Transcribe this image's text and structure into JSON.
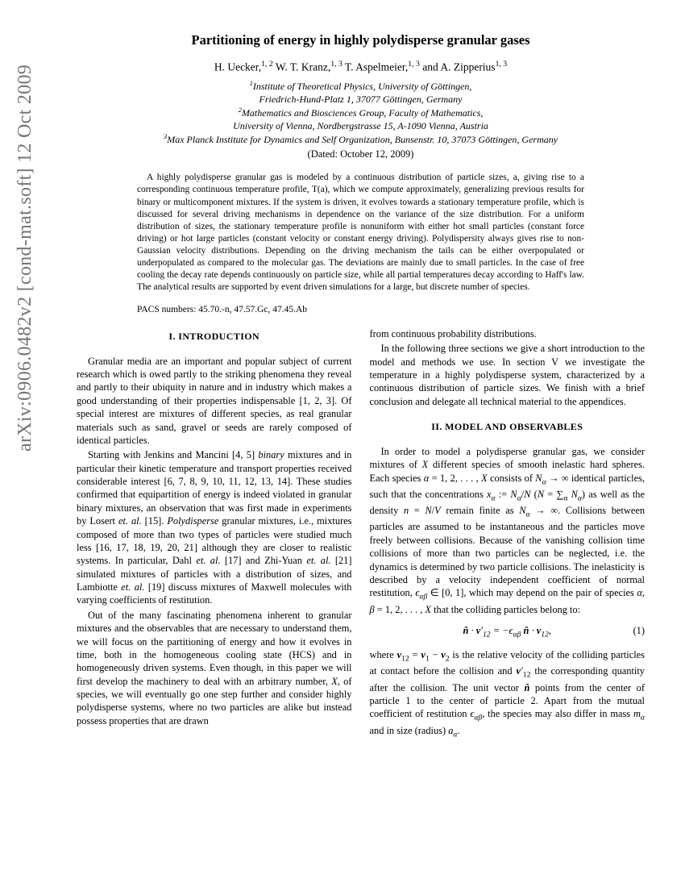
{
  "arxiv": "arXiv:0906.0482v2  [cond-mat.soft]  12 Oct 2009",
  "title": "Partitioning of energy in highly polydisperse granular gases",
  "authors_html": "H. Uecker,<sup>1, 2</sup> W. T. Kranz,<sup>1, 3</sup> T. Aspelmeier,<sup>1, 3</sup> and A. Zipperius<sup>1, 3</sup>",
  "affil1_sup": "1",
  "affil1": "Institute of Theoretical Physics, University of Göttingen,",
  "affil1b": "Friedrich-Hund-Platz 1, 37077 Göttingen, Germany",
  "affil2_sup": "2",
  "affil2": "Mathematics and Biosciences Group, Faculty of Mathematics,",
  "affil2b": "University of Vienna, Nordbergstrasse 15, A-1090 Vienna, Austria",
  "affil3_sup": "3",
  "affil3": "Max Planck Institute for Dynamics and Self Organization, Bunsenstr. 10, 37073 Göttingen, Germany",
  "dated": "(Dated: October 12, 2009)",
  "abstract": "A highly polydisperse granular gas is modeled by a continuous distribution of particle sizes, a, giving rise to a corresponding continuous temperature profile, T(a), which we compute approximately, generalizing previous results for binary or multicomponent mixtures. If the system is driven, it evolves towards a stationary temperature profile, which is discussed for several driving mechanisms in dependence on the variance of the size distribution. For a uniform distribution of sizes, the stationary temperature profile is nonuniform with either hot small particles (constant force driving) or hot large particles (constant velocity or constant energy driving). Polydispersity always gives rise to non-Gaussian velocity distributions. Depending on the driving mechanism the tails can be either overpopulated or underpopulated as compared to the molecular gas. The deviations are mainly due to small particles. In the case of free cooling the decay rate depends continuously on particle size, while all partial temperatures decay according to Haff's law. The analytical results are supported by event driven simulations for a large, but discrete number of species.",
  "pacs": "PACS numbers: 45.70.-n, 47.57.Gc, 47.45.Ab",
  "sec1": "I.   INTRODUCTION",
  "p1": "Granular media are an important and popular subject of current research which is owed partly to the striking phenomena they reveal and partly to their ubiquity in nature and in industry which makes a good understanding of their properties indispensable [1, 2, 3]. Of special interest are mixtures of different species, as real granular materials such as sand, gravel or seeds are rarely composed of identical particles.",
  "p2_html": "Starting with Jenkins and Mancini [4, 5] <span class=\"it\">binary</span> mixtures and in particular their kinetic temperature and transport properties received considerable interest [6, 7, 8, 9, 10, 11, 12, 13, 14]. These studies confirmed that equipartition of energy is indeed violated in granular binary mixtures, an observation that was first made in experiments by Losert <span class=\"it\">et. al.</span> [15]. <span class=\"it\">Polydisperse</span> granular mixtures, i.e., mixtures composed of more than two types of particles were studied much less [16, 17, 18, 19, 20, 21] although they are closer to realistic systems. In particular, Dahl <span class=\"it\">et. al.</span> [17] and Zhi-Yuan <span class=\"it\">et. al.</span> [21] simulated mixtures of particles with a distribution of sizes, and Lambiotte <span class=\"it\">et. al.</span> [19] discuss mixtures of Maxwell molecules with varying coefficients of restitution.",
  "p3_html": "Out of the many fascinating phenomena inherent to granular mixtures and the observables that are necessary to understand them, we will focus on the partitioning of energy and how it evolves in time, both in the homogeneous cooling state (HCS) and in homogeneously driven systems. Even though, in this paper we will first develop the machinery to deal with an arbitrary number, <span class=\"it\">X</span>, of species, we will eventually go one step further and consider highly polydisperse systems, where no two particles are alike but instead possess properties that are drawn",
  "p4": "from continuous probability distributions.",
  "p5": "In the following three sections we give a short introduction to the model and methods we use. In section V we investigate the temperature in a highly polydisperse system, characterized by a continuous distribution of particle sizes. We finish with a brief conclusion and delegate all technical material to the appendices.",
  "sec2": "II.   MODEL AND OBSERVABLES",
  "p6_html": "In order to model a polydisperse granular gas, we consider mixtures of <span class=\"it\">X</span> different species of smooth inelastic hard spheres. Each species <span class=\"it\">α</span> = 1, 2, . . . , <span class=\"it\">X</span> consists of <span class=\"it\">N<sub>α</sub></span> → ∞ identical particles, such that the concentrations <span class=\"it\">x<sub>α</sub></span> := <span class=\"it\">N<sub>α</sub></span>/<span class=\"it\">N</span> (<span class=\"it\">N</span> = ∑<sub>α</sub> <span class=\"it\">N<sub>α</sub></span>) as well as the density <span class=\"it\">n</span> = <span class=\"it\">N</span>/<span class=\"it\">V</span> remain finite as <span class=\"it\">N<sub>α</sub></span> → ∞. Collisions between particles are assumed to be instantaneous and the particles move freely between collisions. Because of the vanishing collision time collisions of more than two particles can be neglected, i.e. the dynamics is determined by two particle collisions. The inelasticity is described by a velocity independent coefficient of normal restitution, <span class=\"it\">ϵ<sub>αβ</sub></span> ∈ [0, 1], which may depend on the pair of species <span class=\"it\">α, β</span> = 1, 2, . . . , <span class=\"it\">X</span> that the colliding particles belong to:",
  "eq1": "n̂ · v′₁₂ = −ϵ_{αβ} n̂ · v₁₂,",
  "eq1num": "(1)",
  "p7_html": "where <span class=\"it\"><b>v</b></span><sub>12</sub> = <span class=\"it\"><b>v</b></span><sub>1</sub> − <span class=\"it\"><b>v</b></span><sub>2</sub> is the relative velocity of the colliding particles at contact before the collision and <span class=\"it\"><b>v</b>′</span><sub>12</sub> the corresponding quantity after the collision. The unit vector <span class=\"it\"><b>n̂</b></span> points from the center of particle 1 to the center of particle 2. Apart from the mutual coefficient of restitution <span class=\"it\">ϵ<sub>αβ</sub></span>, the species may also differ in mass <span class=\"it\">m<sub>α</sub></span> and in size (radius) <span class=\"it\">a<sub>α</sub></span>."
}
